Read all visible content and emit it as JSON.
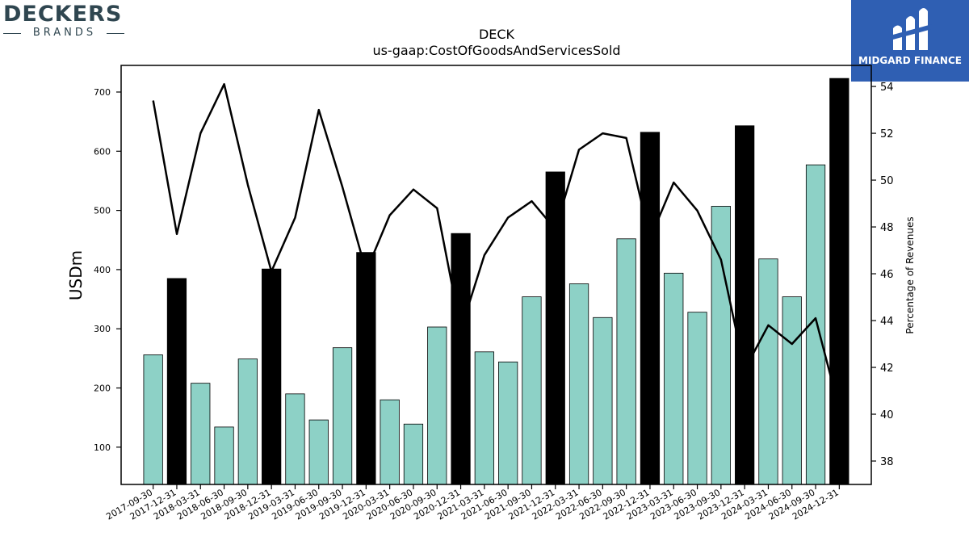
{
  "logos": {
    "left": {
      "wordmark": "DECKERS",
      "sub": "BRANDS"
    },
    "right": {
      "name": "MIDGARD FINANCE"
    }
  },
  "chart_data": {
    "type": "bar",
    "title": "DECK",
    "subtitle": "us-gaap:CostOfGoodsAndServicesSold",
    "ylabel": "USDm",
    "y2label": "Percentage of Revenues",
    "ylim": [
      37,
      745
    ],
    "y2lim": [
      37,
      54.9
    ],
    "yticks": [
      100,
      200,
      300,
      400,
      500,
      600,
      700
    ],
    "y2ticks": [
      38,
      40,
      42,
      44,
      46,
      48,
      50,
      52,
      54
    ],
    "categories": [
      "2017-09-30",
      "2017-12-31",
      "2018-03-31",
      "2018-06-30",
      "2018-09-30",
      "2018-12-31",
      "2019-03-31",
      "2019-06-30",
      "2019-09-30",
      "2019-12-31",
      "2020-03-31",
      "2020-06-30",
      "2020-09-30",
      "2020-12-31",
      "2021-03-31",
      "2021-06-30",
      "2021-09-30",
      "2021-12-31",
      "2022-03-31",
      "2022-06-30",
      "2022-09-30",
      "2022-12-31",
      "2023-03-31",
      "2023-06-30",
      "2023-09-30",
      "2023-12-31",
      "2024-03-31",
      "2024-06-30",
      "2024-09-30",
      "2024-12-31"
    ],
    "values": [
      256,
      385,
      208,
      134,
      249,
      401,
      190,
      146,
      268,
      429,
      180,
      139,
      303,
      461,
      261,
      244,
      354,
      565,
      376,
      319,
      452,
      632,
      394,
      328,
      507,
      643,
      418,
      354,
      577,
      723
    ],
    "highlight": [
      false,
      true,
      false,
      false,
      false,
      true,
      false,
      false,
      false,
      true,
      false,
      false,
      false,
      true,
      false,
      false,
      false,
      true,
      false,
      false,
      false,
      true,
      false,
      false,
      false,
      true,
      false,
      false,
      false,
      true
    ],
    "line_values": [
      53.4,
      47.7,
      52.0,
      54.1,
      49.8,
      46.1,
      48.4,
      53.0,
      49.7,
      46.1,
      48.5,
      49.6,
      48.8,
      43.6,
      46.8,
      48.4,
      49.1,
      47.9,
      51.3,
      52.0,
      51.8,
      47.5,
      49.9,
      48.7,
      46.6,
      41.9,
      43.8,
      43.0,
      44.1,
      40.2
    ],
    "colors": {
      "bar": "#8dd1c6",
      "bar_highlight": "#000000",
      "line": "#000000"
    }
  }
}
